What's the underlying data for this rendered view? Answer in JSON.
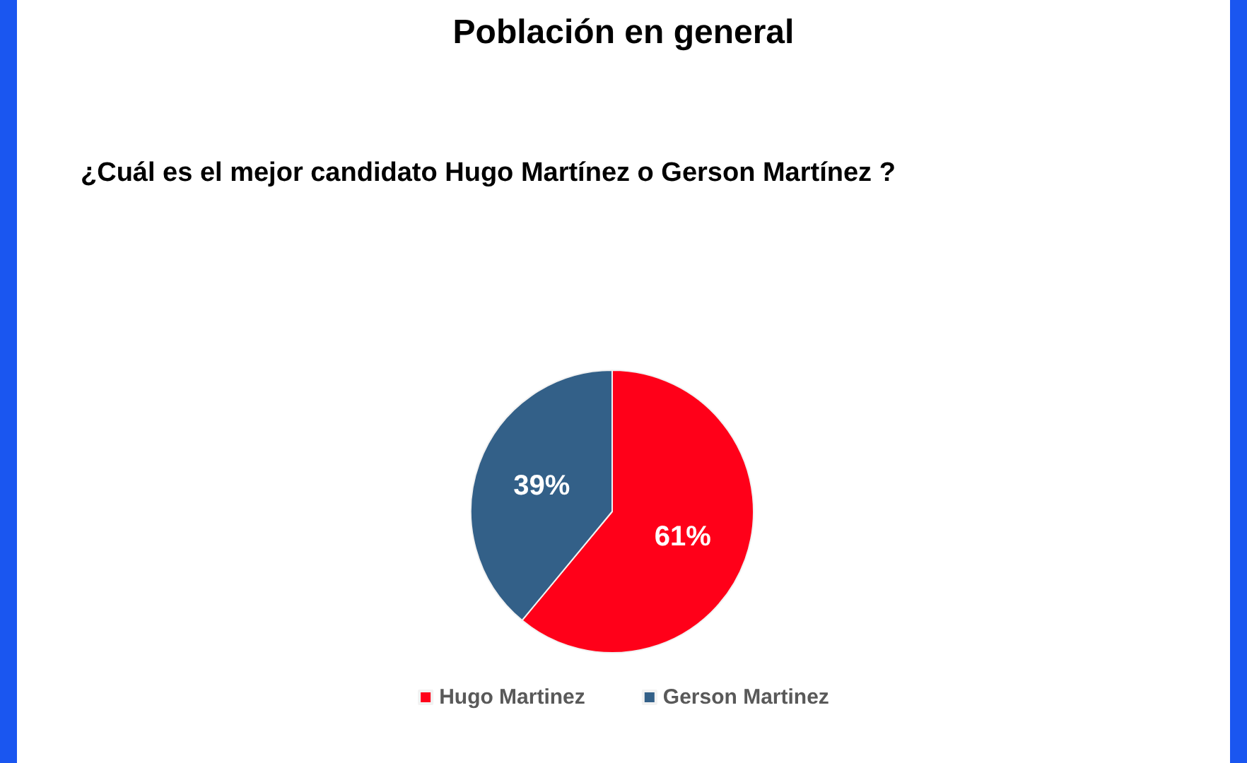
{
  "chart_data": {
    "type": "pie",
    "title": "Población en general",
    "subtitle": "¿Cuál es el mejor candidato Hugo Martínez o Gerson Martínez ?",
    "categories": [
      "Hugo Martinez",
      "Gerson Martinez"
    ],
    "values": [
      61,
      39
    ],
    "value_labels": [
      "61%",
      "39%"
    ],
    "colors": [
      "#ff0019",
      "#336088"
    ],
    "legend": "bottom"
  }
}
